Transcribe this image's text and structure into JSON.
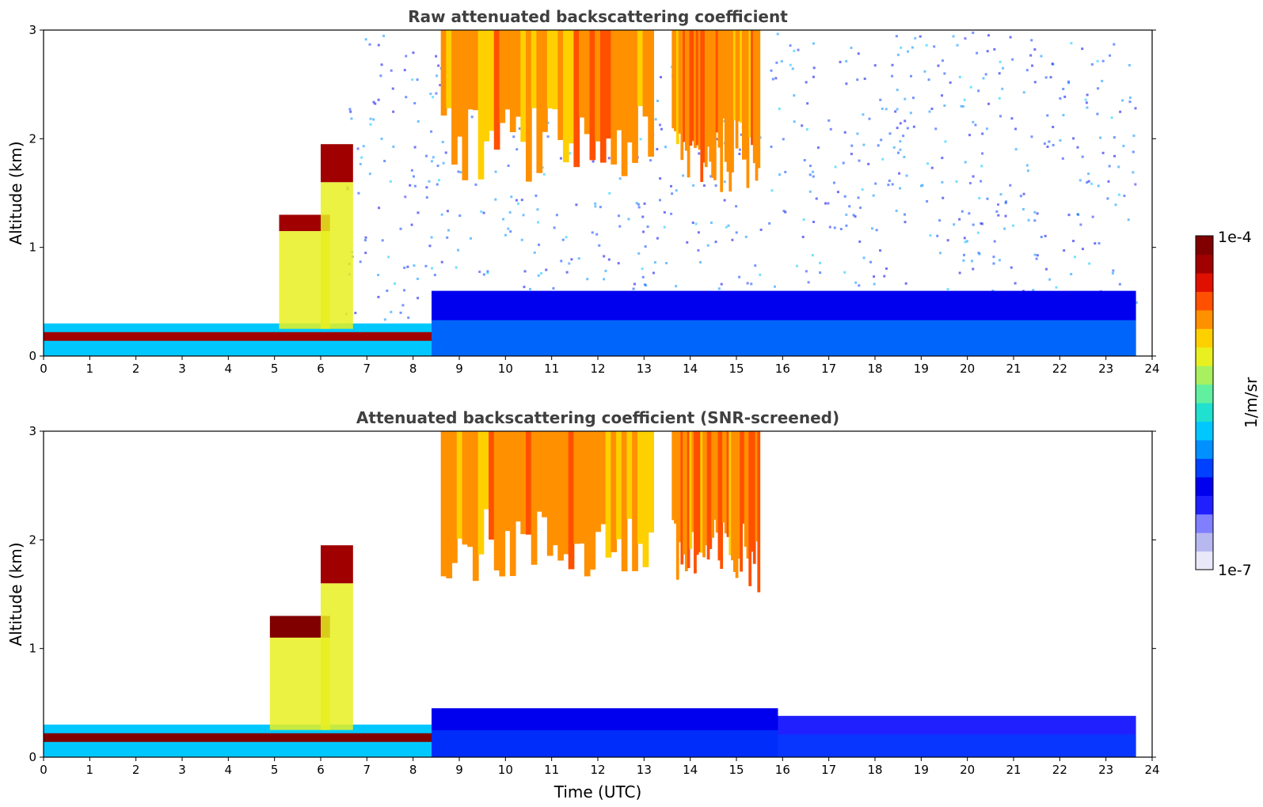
{
  "chart_data": [
    {
      "type": "heatmap",
      "title": "Raw attenuated backscattering coefficient",
      "xlabel": "",
      "ylabel": "Altitude (km)",
      "xlim": [
        0,
        24
      ],
      "ylim": [
        0,
        3
      ],
      "x_ticks": [
        "0",
        "1",
        "2",
        "3",
        "4",
        "5",
        "6",
        "7",
        "8",
        "9",
        "10",
        "11",
        "12",
        "13",
        "14",
        "15",
        "16",
        "17",
        "18",
        "19",
        "20",
        "21",
        "22",
        "23",
        "24"
      ],
      "y_ticks": [
        "0",
        "1",
        "2",
        "3"
      ],
      "data_end_time": 23.65,
      "features": [
        {
          "kind": "surface_layer",
          "t0": 0,
          "t1": 8.4,
          "alt": 0.18,
          "level": 0.97
        },
        {
          "kind": "cloud",
          "t0": 5.1,
          "t1": 6.2,
          "alt_base": 1.15,
          "alt_top": 1.3,
          "level": 0.95
        },
        {
          "kind": "cloud",
          "t0": 6.0,
          "t1": 6.7,
          "alt_base": 1.6,
          "alt_top": 1.95,
          "level": 0.95
        },
        {
          "kind": "cirrus",
          "t0": 8.6,
          "t1": 13.2,
          "alt_base": 1.6,
          "alt_top": 3.0,
          "level": 0.75
        },
        {
          "kind": "cirrus",
          "t0": 13.6,
          "t1": 15.5,
          "alt_base": 1.5,
          "alt_top": 3.0,
          "level": 0.78
        },
        {
          "kind": "boundary_layer",
          "t0": 8.4,
          "t1": 23.65,
          "alt_base": 0.0,
          "alt_top": 0.6,
          "level": 0.25
        }
      ]
    },
    {
      "type": "heatmap",
      "title": "Attenuated backscattering coefficient (SNR-screened)",
      "xlabel": "Time (UTC)",
      "ylabel": "Altitude (km)",
      "xlim": [
        0,
        24
      ],
      "ylim": [
        0,
        3
      ],
      "x_ticks": [
        "0",
        "1",
        "2",
        "3",
        "4",
        "5",
        "6",
        "7",
        "8",
        "9",
        "10",
        "11",
        "12",
        "13",
        "14",
        "15",
        "16",
        "17",
        "18",
        "19",
        "20",
        "21",
        "22",
        "23",
        "24"
      ],
      "y_ticks": [
        "0",
        "1",
        "2",
        "3"
      ],
      "data_end_time": 23.65,
      "features": [
        {
          "kind": "surface_layer",
          "t0": 0,
          "t1": 8.4,
          "alt": 0.18,
          "level": 0.99
        },
        {
          "kind": "cloud",
          "t0": 4.9,
          "t1": 6.2,
          "alt_base": 1.1,
          "alt_top": 1.3,
          "level": 0.99
        },
        {
          "kind": "cloud",
          "t0": 6.0,
          "t1": 6.7,
          "alt_base": 1.6,
          "alt_top": 1.95,
          "level": 0.95
        },
        {
          "kind": "cirrus",
          "t0": 8.6,
          "t1": 13.2,
          "alt_base": 1.6,
          "alt_top": 3.0,
          "level": 0.75
        },
        {
          "kind": "cirrus",
          "t0": 13.6,
          "t1": 15.5,
          "alt_base": 1.5,
          "alt_top": 3.0,
          "level": 0.78
        },
        {
          "kind": "boundary_layer",
          "t0": 8.4,
          "t1": 15.9,
          "alt_base": 0.0,
          "alt_top": 0.45,
          "level": 0.22
        },
        {
          "kind": "boundary_layer",
          "t0": 15.9,
          "t1": 23.65,
          "alt_base": 0.0,
          "alt_top": 0.38,
          "level": 0.2
        }
      ]
    }
  ],
  "colorbar": {
    "label": "1/m/sr",
    "max_label": "1e-4",
    "min_label": "1e-7",
    "colors": [
      "#e8e8f8",
      "#b8b8f0",
      "#8080ff",
      "#2020ff",
      "#0000ee",
      "#0040ff",
      "#0090ff",
      "#00c8ff",
      "#20e0d0",
      "#60f0a0",
      "#a8f060",
      "#e8f020",
      "#ffd000",
      "#ff9000",
      "#ff5000",
      "#e01000",
      "#a00000",
      "#800000"
    ]
  }
}
